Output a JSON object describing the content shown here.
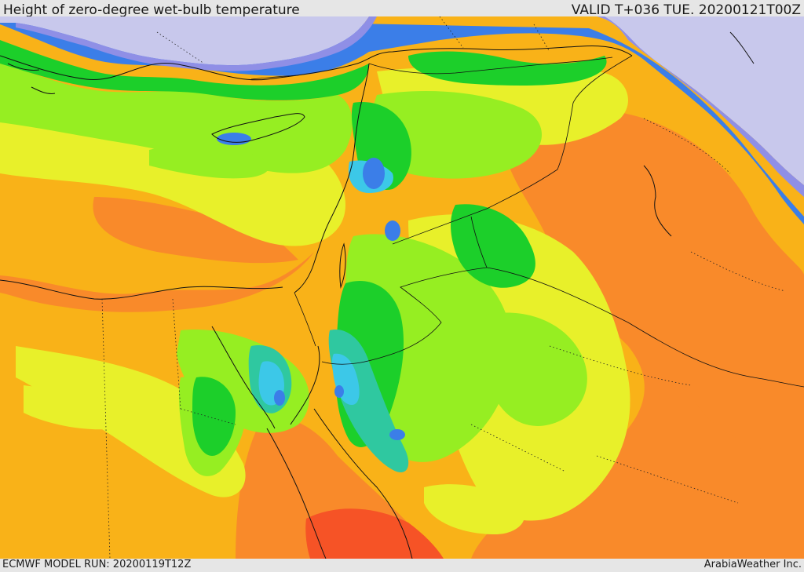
{
  "header": {
    "title": "Height of zero-degree wet-bulb temperature",
    "valid_time": "VALID T+036 TUE. 20200121T00Z"
  },
  "footer": {
    "model_run": "ECMWF MODEL RUN: 20200119T12Z",
    "credit": "ArabiaWeather Inc."
  },
  "colors": {
    "lowest": "#c8c8ec",
    "very_low": "#8f8fe6",
    "low_blue": "#3b7ee8",
    "cyan": "#3cc8e8",
    "teal": "#2fc8a0",
    "green_dark": "#1ccf2a",
    "green": "#33dd22",
    "lime": "#96ee22",
    "yellow": "#e8f02a",
    "orange_light": "#f9b218",
    "orange": "#f98a2a",
    "red_orange": "#f65326"
  }
}
